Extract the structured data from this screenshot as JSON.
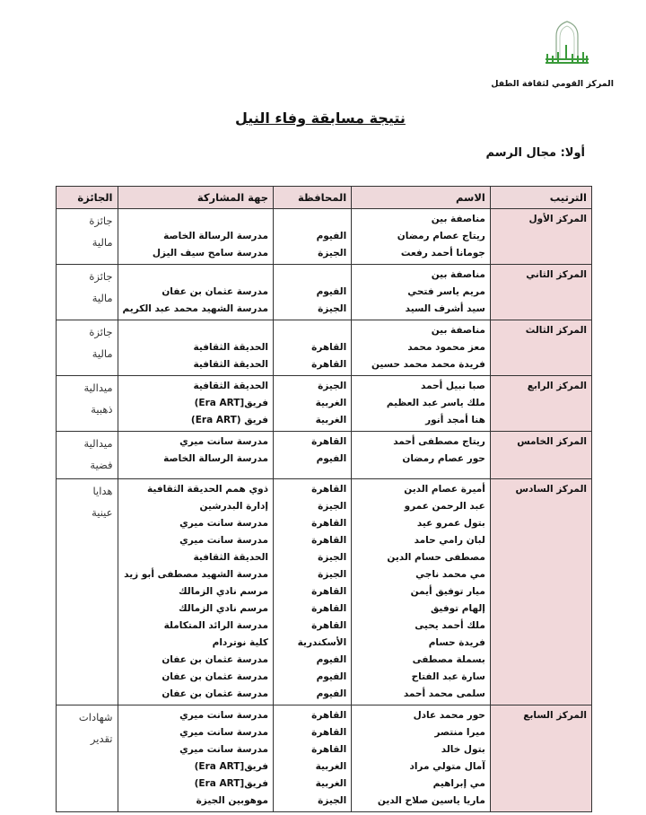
{
  "header": {
    "organization": "المركز القومي لثقافة الطفل",
    "title": "نتيجة مسابقة وفاء النيل",
    "section": "أولا: مجال الرسم",
    "logo_color": "#3a9a3a"
  },
  "table": {
    "columns": [
      "الترتيب",
      "الاسم",
      "المحافظة",
      "جهة المشاركة",
      "الجائزة"
    ],
    "groups": [
      {
        "rank": "المركز الأول",
        "names": [
          "مناصفة بين",
          "ريتاج عصام رمضان",
          "جومانا أحمد رفعت"
        ],
        "govs": [
          "",
          "الفيوم",
          "الجيزة"
        ],
        "entities": [
          "",
          "مدرسة الرسالة الخاصة",
          "مدرسة سامح سيف اليزل"
        ],
        "prize": [
          "جائزة",
          "مالية"
        ]
      },
      {
        "rank": "المركز الثاني",
        "names": [
          "مناصفة بين",
          "مريم ياسر فتحي",
          "سيد أشرف السيد"
        ],
        "govs": [
          "",
          "الفيوم",
          "الجيزة"
        ],
        "entities": [
          "",
          "مدرسة عثمان بن عفان",
          "مدرسة الشهيد محمد عبد الكريم"
        ],
        "prize": [
          "جائزة",
          "مالية"
        ]
      },
      {
        "rank": "المركز الثالث",
        "names": [
          "مناصفة بين",
          "معز محمود محمد",
          "فريدة محمد محمد حسين"
        ],
        "govs": [
          "",
          "القاهرة",
          "القاهرة"
        ],
        "entities": [
          "",
          "الحديقة الثقافية",
          "الحديقة الثقافية"
        ],
        "prize": [
          "جائزة",
          "مالية"
        ]
      },
      {
        "rank": "المركز الرابع",
        "names": [
          "صبا نبيل أحمد",
          "ملك ياسر عبد العظيم",
          "هنا أمجد أنور"
        ],
        "govs": [
          "الجيزة",
          "الغربية",
          "الغربية"
        ],
        "entities": [
          "الحديقة الثقافية",
          "فريق[Era ART)",
          "فريق (Era ART)"
        ],
        "prize": [
          "ميدالية",
          "ذهبية"
        ]
      },
      {
        "rank": "المركز الخامس",
        "names": [
          "ريتاج مصطفى أحمد",
          "حور عصام رمضان"
        ],
        "govs": [
          "القاهرة",
          "الفيوم"
        ],
        "entities": [
          "مدرسة سانت ميري",
          "مدرسة الرسالة الخاصة"
        ],
        "prize": [
          "ميدالية",
          "فضية"
        ]
      },
      {
        "rank": "المركز السادس",
        "names": [
          "أميرة عصام الدين",
          "عبد الرحمن عمرو",
          "بتول عمرو عيد",
          "لبان رامي حامد",
          "مصطفى حسام الدين",
          "مي محمد ناجي",
          "ميار توفيق أيمن",
          "إلهام توفيق",
          "ملك أحمد يحيى",
          "فريدة حسام",
          "بسملة مصطفى",
          "سارة عبد الفتاح",
          "سلمى محمد أحمد"
        ],
        "govs": [
          "القاهرة",
          "الجيزة",
          "القاهرة",
          "القاهرة",
          "الجيزة",
          "الجيزة",
          "القاهرة",
          "القاهرة",
          "القاهرة",
          "الأسكندرية",
          "الفيوم",
          "الفيوم",
          "الفيوم"
        ],
        "entities": [
          "ذوي همم الحديقة الثقافية",
          "إدارة البدرشين",
          "مدرسة سانت ميري",
          "مدرسة سانت ميري",
          "الحديقة الثقافية",
          "مدرسة الشهيد مصطفى أبو زيد",
          "مرسم نادي الزمالك",
          "مرسم نادي الزمالك",
          "مدرسة الرائد المتكاملة",
          "كلية نوتردام",
          "مدرسة عثمان بن عفان",
          "مدرسة عثمان بن عفان",
          "مدرسة عثمان بن عفان"
        ],
        "prize": [
          "هدايا",
          "عينية"
        ]
      },
      {
        "rank": "المركز السابع",
        "names": [
          "حور محمد عادل",
          "ميرا منتصر",
          "بتول خالد",
          "آمال متولي مراد",
          "مي إبراهيم",
          "ماريا ياسين صلاح الدين"
        ],
        "govs": [
          "القاهرة",
          "القاهرة",
          "القاهرة",
          "الغربية",
          "الغربية",
          "الجيزة"
        ],
        "entities": [
          "مدرسة سانت ميري",
          "مدرسة سانت ميري",
          "مدرسة سانت ميري",
          "فريق[Era ART)",
          "فريق[Era ART)",
          "موهوبين الجيزة"
        ],
        "prize": [
          "شهادات",
          "تقدير"
        ]
      }
    ]
  }
}
